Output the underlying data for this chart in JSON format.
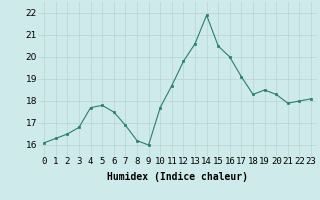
{
  "x": [
    0,
    1,
    2,
    3,
    4,
    5,
    6,
    7,
    8,
    9,
    10,
    11,
    12,
    13,
    14,
    15,
    16,
    17,
    18,
    19,
    20,
    21,
    22,
    23
  ],
  "y": [
    16.1,
    16.3,
    16.5,
    16.8,
    17.7,
    17.8,
    17.5,
    16.9,
    16.2,
    16.0,
    17.7,
    18.7,
    19.8,
    20.6,
    21.9,
    20.5,
    20.0,
    19.1,
    18.3,
    18.5,
    18.3,
    17.9,
    18.0,
    18.1
  ],
  "xlabel": "Humidex (Indice chaleur)",
  "ylim": [
    15.5,
    22.5
  ],
  "xlim": [
    -0.5,
    23.5
  ],
  "yticks": [
    16,
    17,
    18,
    19,
    20,
    21,
    22
  ],
  "xtick_labels": [
    "0",
    "1",
    "2",
    "3",
    "4",
    "5",
    "6",
    "7",
    "8",
    "9",
    "10",
    "11",
    "12",
    "13",
    "14",
    "15",
    "16",
    "17",
    "18",
    "19",
    "20",
    "21",
    "22",
    "23"
  ],
  "line_color": "#2e7d6e",
  "marker_color": "#2e7d6e",
  "bg_color": "#ceeaea",
  "grid_color": "#b8d4d4",
  "xlabel_fontsize": 7,
  "tick_fontsize": 6.5
}
